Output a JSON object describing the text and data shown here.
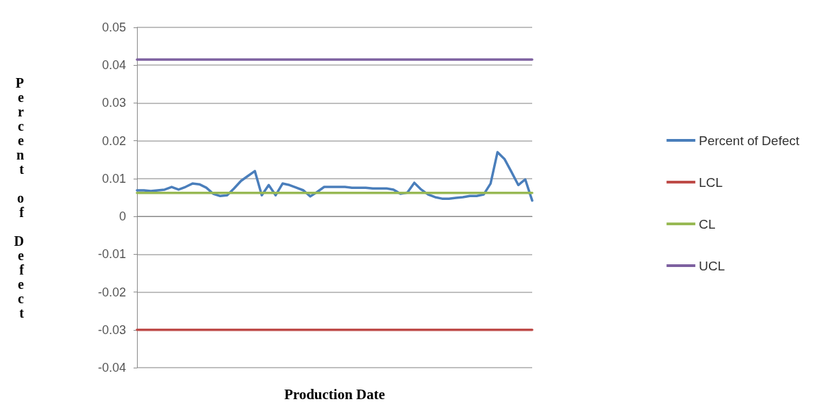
{
  "chart_data": {
    "type": "line",
    "xlabel": "Production Date",
    "ylabel": "Percent of Defect",
    "categories": [
      null,
      null,
      null,
      null,
      null,
      null,
      null,
      null,
      null,
      null,
      null,
      null,
      null,
      null,
      null,
      null,
      null,
      null,
      null,
      null,
      null,
      null,
      null,
      null,
      null,
      null,
      null,
      null,
      null,
      null,
      null,
      null,
      null,
      null,
      null,
      null,
      null,
      null,
      null,
      null,
      null,
      null,
      null,
      null,
      null,
      null,
      null,
      null,
      null,
      null,
      null,
      null,
      null,
      null,
      null,
      null,
      null,
      null
    ],
    "ylim": [
      -0.04,
      0.05
    ],
    "yticks": [
      -0.04,
      -0.03,
      -0.02,
      -0.01,
      0,
      0.01,
      0.02,
      0.03,
      0.04,
      0.05
    ],
    "series": [
      {
        "name": "Percent of Defect",
        "color": "#4a7ebb",
        "values": [
          0.0069,
          0.0069,
          0.0067,
          0.0069,
          0.0071,
          0.0078,
          0.0071,
          0.0078,
          0.0087,
          0.0085,
          0.0076,
          0.006,
          0.0054,
          0.0056,
          0.0074,
          0.0094,
          0.0107,
          0.012,
          0.0056,
          0.0083,
          0.0056,
          0.0087,
          0.0083,
          0.0076,
          0.0069,
          0.0053,
          0.0065,
          0.0078,
          0.0078,
          0.0078,
          0.0078,
          0.0076,
          0.0076,
          0.0076,
          0.0074,
          0.0074,
          0.0074,
          0.0071,
          0.006,
          0.0063,
          0.0089,
          0.0071,
          0.0058,
          0.0051,
          0.0047,
          0.0047,
          0.0049,
          0.0051,
          0.0054,
          0.0054,
          0.0058,
          0.0087,
          0.017,
          0.0152,
          0.0118,
          0.0083,
          0.0098,
          0.0042
        ]
      },
      {
        "name": "LCL",
        "color": "#be4b48",
        "values": [
          -0.03,
          -0.03,
          -0.03,
          -0.03,
          -0.03,
          -0.03,
          -0.03,
          -0.03,
          -0.03,
          -0.03,
          -0.03,
          -0.03,
          -0.03,
          -0.03,
          -0.03,
          -0.03,
          -0.03,
          -0.03,
          -0.03,
          -0.03,
          -0.03,
          -0.03,
          -0.03,
          -0.03,
          -0.03,
          -0.03,
          -0.03,
          -0.03,
          -0.03,
          -0.03,
          -0.03,
          -0.03,
          -0.03,
          -0.03,
          -0.03,
          -0.03,
          -0.03,
          -0.03,
          -0.03,
          -0.03,
          -0.03,
          -0.03,
          -0.03,
          -0.03,
          -0.03,
          -0.03,
          -0.03,
          -0.03,
          -0.03,
          -0.03,
          -0.03,
          -0.03,
          -0.03,
          -0.03,
          -0.03,
          -0.03,
          -0.03,
          -0.03
        ]
      },
      {
        "name": "CL",
        "color": "#98b954",
        "values": [
          0.0062,
          0.0062,
          0.0062,
          0.0062,
          0.0062,
          0.0062,
          0.0062,
          0.0062,
          0.0062,
          0.0062,
          0.0062,
          0.0062,
          0.0062,
          0.0062,
          0.0062,
          0.0062,
          0.0062,
          0.0062,
          0.0062,
          0.0062,
          0.0062,
          0.0062,
          0.0062,
          0.0062,
          0.0062,
          0.0062,
          0.0062,
          0.0062,
          0.0062,
          0.0062,
          0.0062,
          0.0062,
          0.0062,
          0.0062,
          0.0062,
          0.0062,
          0.0062,
          0.0062,
          0.0062,
          0.0062,
          0.0062,
          0.0062,
          0.0062,
          0.0062,
          0.0062,
          0.0062,
          0.0062,
          0.0062,
          0.0062,
          0.0062,
          0.0062,
          0.0062,
          0.0062,
          0.0062,
          0.0062,
          0.0062,
          0.0062,
          0.0062
        ]
      },
      {
        "name": "UCL",
        "color": "#7d60a0",
        "values": [
          0.0415,
          0.0415,
          0.0415,
          0.0415,
          0.0415,
          0.0415,
          0.0415,
          0.0415,
          0.0415,
          0.0415,
          0.0415,
          0.0415,
          0.0415,
          0.0415,
          0.0415,
          0.0415,
          0.0415,
          0.0415,
          0.0415,
          0.0415,
          0.0415,
          0.0415,
          0.0415,
          0.0415,
          0.0415,
          0.0415,
          0.0415,
          0.0415,
          0.0415,
          0.0415,
          0.0415,
          0.0415,
          0.0415,
          0.0415,
          0.0415,
          0.0415,
          0.0415,
          0.0415,
          0.0415,
          0.0415,
          0.0415,
          0.0415,
          0.0415,
          0.0415,
          0.0415,
          0.0415,
          0.0415,
          0.0415,
          0.0415,
          0.0415,
          0.0415,
          0.0415,
          0.0415,
          0.0415,
          0.0415,
          0.0415,
          0.0415,
          0.0415
        ]
      }
    ],
    "grid": "y",
    "legend": "right",
    "marker": "none",
    "line_style": "solid"
  }
}
